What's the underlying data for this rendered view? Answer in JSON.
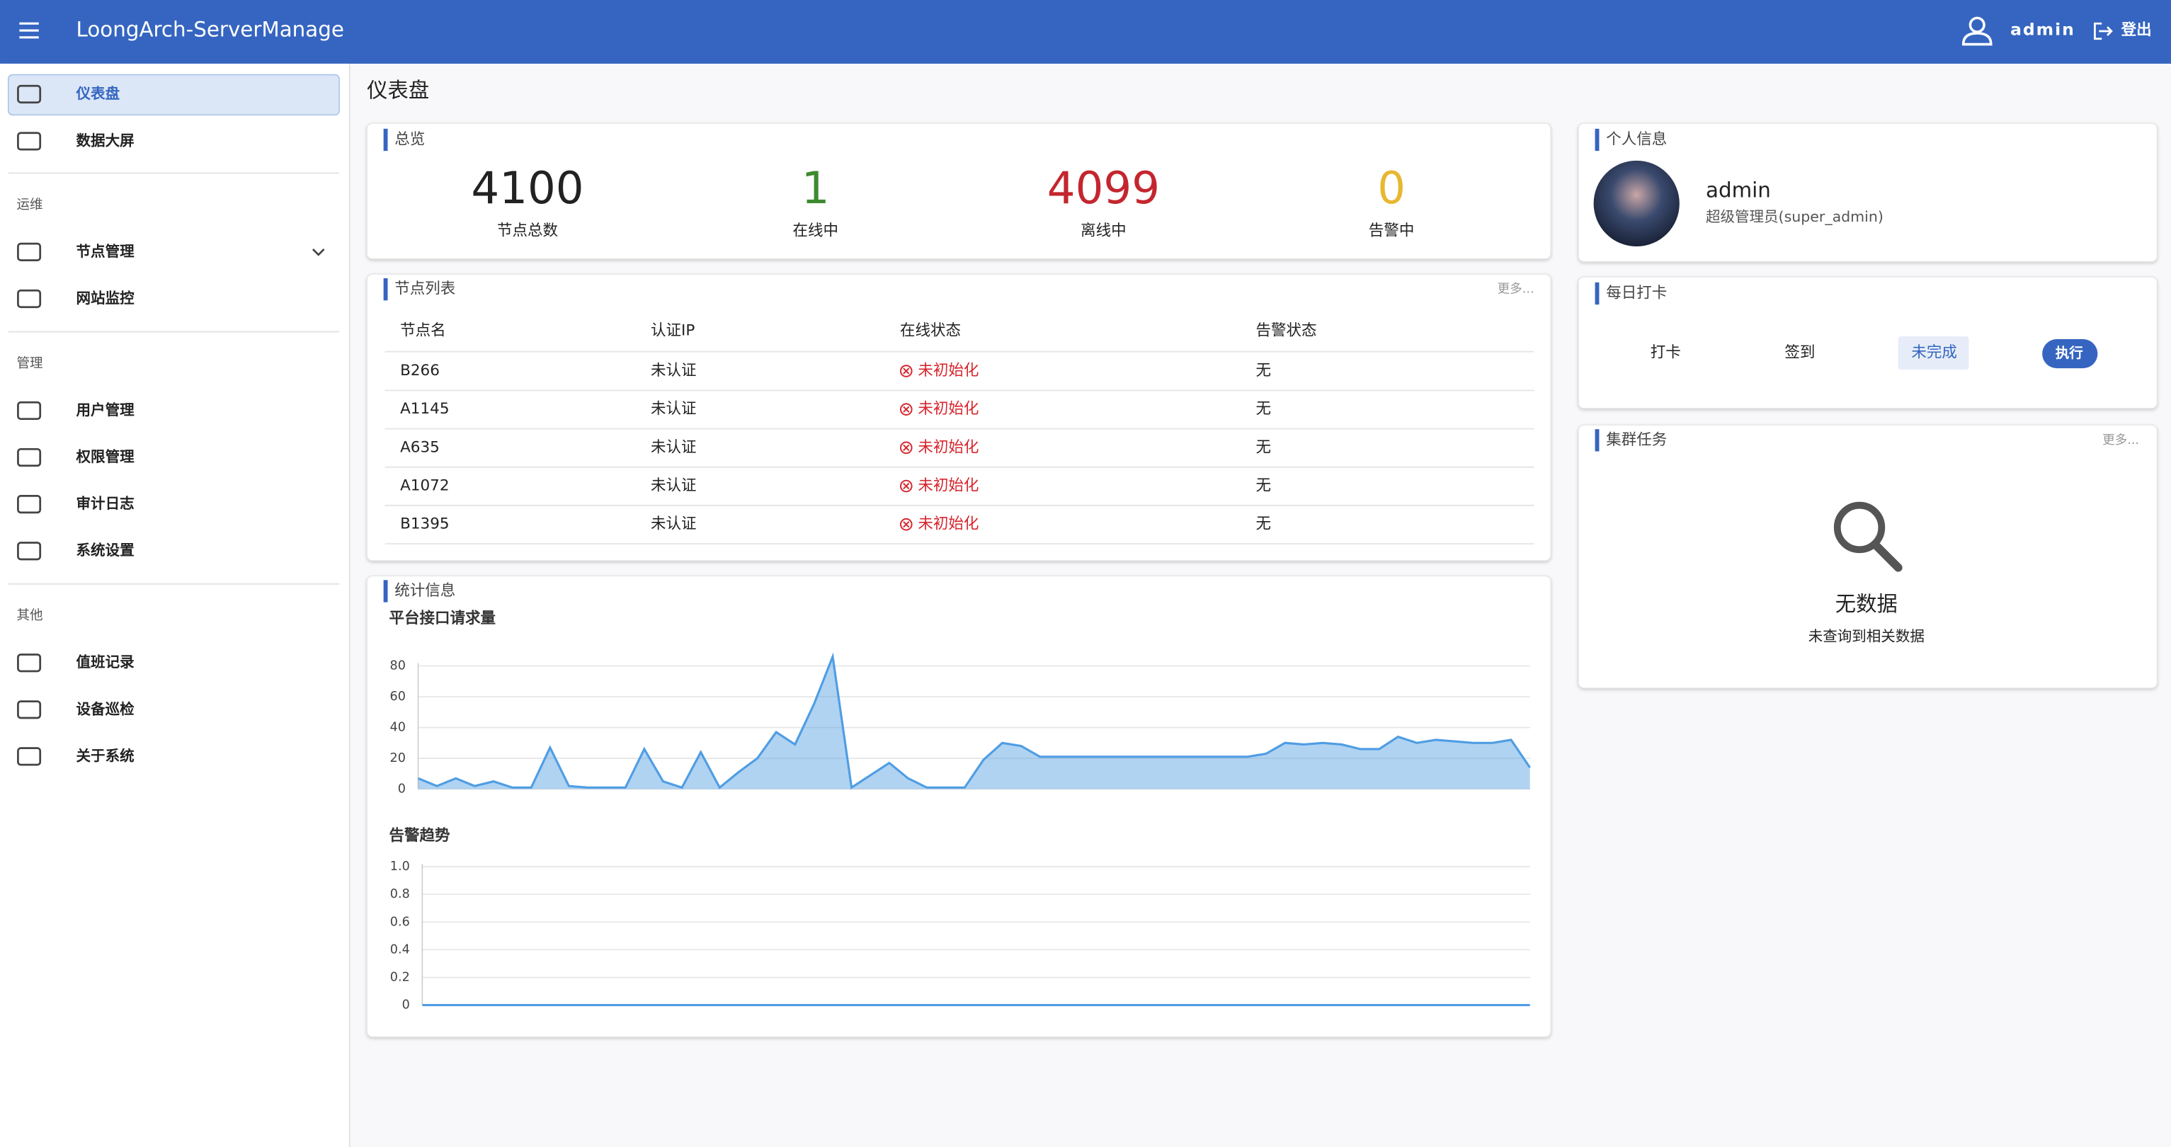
{
  "header": {
    "title": "LoongArch-ServerManage",
    "user": "admin",
    "logout": "登出"
  },
  "sidebar": {
    "items": [
      "仪表盘",
      "数据大屏"
    ],
    "groups": [
      {
        "title": "运维",
        "items": [
          "节点管理",
          "网站监控"
        ]
      },
      {
        "title": "管理",
        "items": [
          "用户管理",
          "权限管理",
          "审计日志",
          "系统设置"
        ]
      },
      {
        "title": "其他",
        "items": [
          "值班记录",
          "设备巡检",
          "关于系统"
        ]
      }
    ]
  },
  "page_title": "仪表盘",
  "overview": {
    "title": "总览",
    "stats": [
      {
        "value": 4100,
        "label": "节点总数",
        "color": "#222222"
      },
      {
        "value": 1,
        "label": "在线中",
        "color": "#3d8b30"
      },
      {
        "value": 4099,
        "label": "离线中",
        "color": "#c4262e"
      },
      {
        "value": 0,
        "label": "告警中",
        "color": "#e8b730"
      }
    ]
  },
  "node_list": {
    "title": "节点列表",
    "more": "更多...",
    "columns": [
      "节点名",
      "认证IP",
      "在线状态",
      "告警状态"
    ],
    "rows": [
      [
        "B266",
        "未认证",
        "未初始化",
        "无"
      ],
      [
        "A1145",
        "未认证",
        "未初始化",
        "无"
      ],
      [
        "A635",
        "未认证",
        "未初始化",
        "无"
      ],
      [
        "A1072",
        "未认证",
        "未初始化",
        "无"
      ],
      [
        "B1395",
        "未认证",
        "未初始化",
        "无"
      ]
    ]
  },
  "stats": {
    "title": "统计信息"
  },
  "chart_data": [
    {
      "type": "line",
      "title": "平台接口请求量",
      "area": true,
      "color": "#4f9de3",
      "values": [
        7,
        2,
        7,
        2,
        5,
        1,
        1,
        27,
        2,
        1,
        1,
        1,
        26,
        5,
        1,
        24,
        1,
        11,
        20,
        37,
        29,
        55,
        86,
        1,
        9,
        17,
        7,
        1,
        1,
        1,
        19,
        30,
        28,
        21,
        21,
        21,
        21,
        21,
        21,
        21,
        21,
        21,
        21,
        21,
        21,
        23,
        30,
        29,
        30,
        29,
        26,
        26,
        34,
        30,
        32,
        31,
        30,
        30,
        32,
        14
      ],
      "ylim": [
        0,
        88
      ],
      "yticks": [
        0,
        20,
        40,
        60,
        80
      ],
      "grid": true
    },
    {
      "type": "line",
      "title": "告警趋势",
      "area": false,
      "color": "#4f9de3",
      "values": [
        0,
        0,
        0,
        0,
        0,
        0,
        0,
        0,
        0,
        0,
        0,
        0,
        0,
        0,
        0,
        0,
        0,
        0,
        0,
        0,
        0,
        0,
        0,
        0,
        0,
        0,
        0,
        0,
        0,
        0
      ],
      "ylim": [
        0,
        1
      ],
      "yticks": [
        0,
        0.2,
        0.4,
        0.6,
        0.8,
        {
          "value": 1,
          "label": "1.0"
        }
      ],
      "grid": true
    }
  ],
  "profile": {
    "title": "个人信息",
    "name": "admin",
    "role": "超级管理员(super_admin)"
  },
  "checkin": {
    "title": "每日打卡",
    "cells": [
      "打卡",
      "签到",
      "未完成"
    ],
    "button": "执行"
  },
  "cluster_tasks": {
    "title": "集群任务",
    "more": "更多...",
    "empty_title": "无数据",
    "empty_text": "未查询到相关数据"
  }
}
